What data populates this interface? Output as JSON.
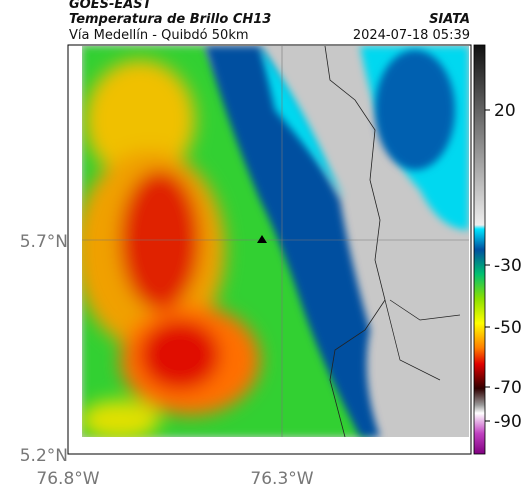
{
  "header": {
    "source": "GOES-EAST",
    "title": "Temperatura de Brillo CH13",
    "org": "SIATA",
    "route": "Vía Medellín - Quibdó 50km",
    "timestamp": "2024-07-18 05:39"
  },
  "axes": {
    "lat_labels": [
      "5.7°N",
      "5.2°N"
    ],
    "lon_labels": [
      "76.8°W",
      "76.3°W"
    ]
  },
  "colorbar": {
    "ticks": [
      "20",
      "-30",
      "-50",
      "-70",
      "-90"
    ]
  }
}
